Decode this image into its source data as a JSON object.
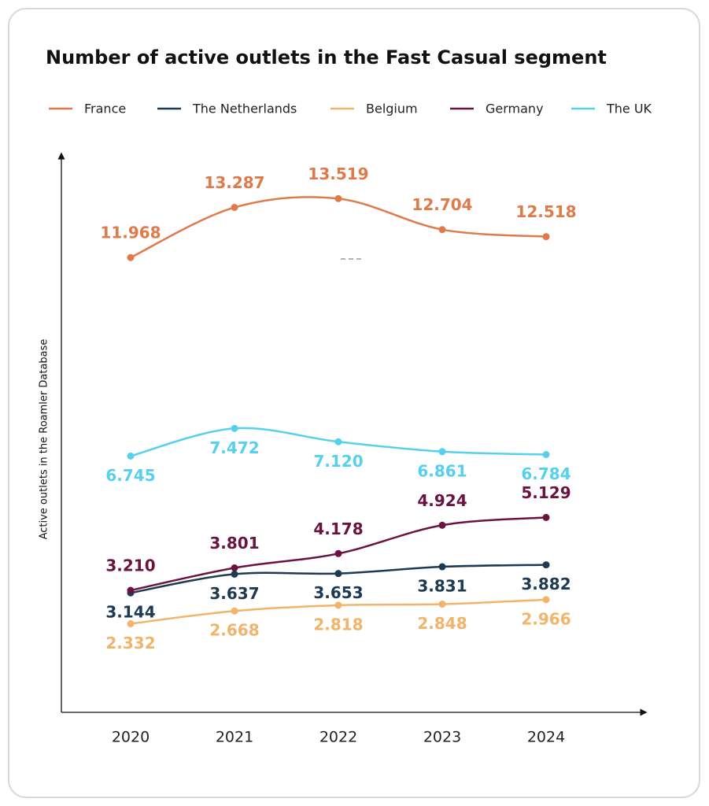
{
  "chart_data": {
    "type": "line",
    "title": "Number of active outlets in the Fast Casual segment",
    "y_label": "Active outlets in the Roamler Database",
    "categories": [
      "2020",
      "2021",
      "2022",
      "2023",
      "2024"
    ],
    "ylim": [
      0,
      14500
    ],
    "series": [
      {
        "name": "France",
        "color": "#e07a4a",
        "values": [
          11968,
          13287,
          13519,
          12704,
          12518
        ],
        "value_labels": [
          "11.968",
          "13.287",
          "13.519",
          "12.704",
          "12.518"
        ]
      },
      {
        "name": "The Netherlands",
        "color": "#1d3a52",
        "values": [
          3144,
          3637,
          3653,
          3831,
          3882
        ],
        "value_labels": [
          "3.144",
          "3.637",
          "3.653",
          "3.831",
          "3.882"
        ]
      },
      {
        "name": "Belgium",
        "color": "#f2b46a",
        "values": [
          2332,
          2668,
          2818,
          2848,
          2966
        ],
        "value_labels": [
          "2.332",
          "2.668",
          "2.818",
          "2.848",
          "2.966"
        ]
      },
      {
        "name": "Germany",
        "color": "#6b1340",
        "values": [
          3210,
          3801,
          4178,
          4924,
          5129
        ],
        "value_labels": [
          "3.210",
          "3.801",
          "4.178",
          "4.924",
          "5.129"
        ]
      },
      {
        "name": "The UK",
        "color": "#56d0ee",
        "values": [
          6745,
          7472,
          7120,
          6861,
          6784
        ],
        "value_labels": [
          "6.745",
          "7.472",
          "7.120",
          "6.861",
          "6.784"
        ]
      }
    ]
  }
}
